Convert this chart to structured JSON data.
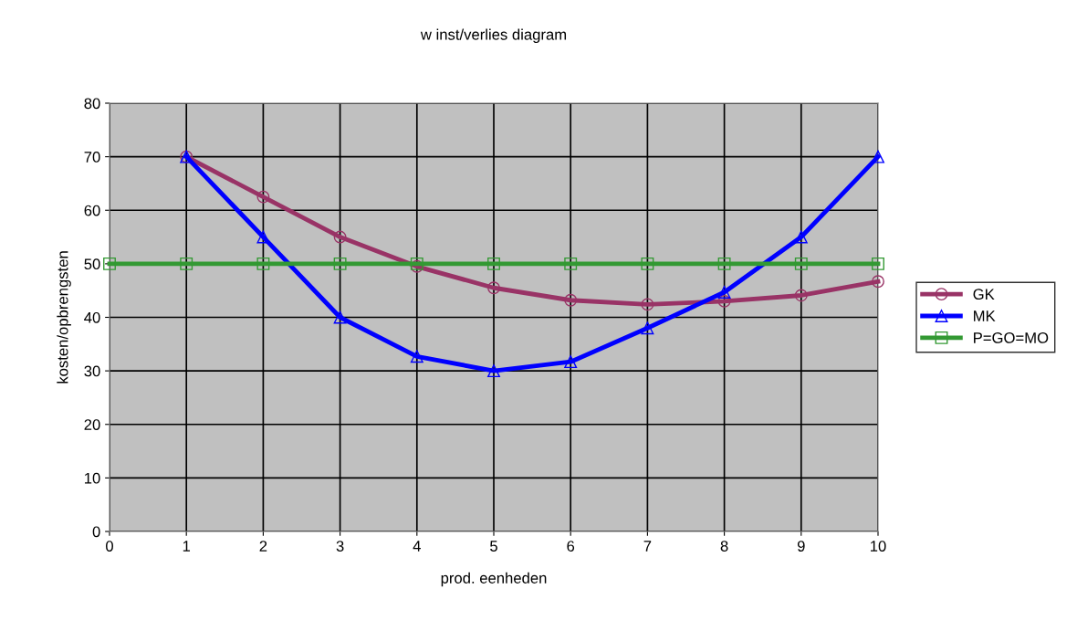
{
  "chart_data": {
    "type": "line",
    "title": "w inst/verlies diagram",
    "xlabel": "prod. eenheden",
    "ylabel": "kosten/opbrengsten",
    "x": [
      1,
      2,
      3,
      4,
      5,
      6,
      7,
      8,
      9,
      10
    ],
    "series": [
      {
        "name": "GK",
        "color": "#993366",
        "marker": "circle",
        "values": [
          70,
          62.5,
          55,
          49.5,
          45.5,
          43.2,
          42.4,
          43,
          44.1,
          46.7
        ]
      },
      {
        "name": "MK",
        "color": "#0000ff",
        "marker": "triangle",
        "values": [
          70,
          55,
          40,
          32.7,
          30,
          31.7,
          38,
          44.7,
          55,
          70
        ]
      },
      {
        "name": "P=GO=MO",
        "color": "#339933",
        "marker": "square",
        "x": [
          0,
          1,
          2,
          3,
          4,
          5,
          6,
          7,
          8,
          9,
          10
        ],
        "values": [
          50,
          50,
          50,
          50,
          50,
          50,
          50,
          50,
          50,
          50,
          50
        ]
      }
    ],
    "xlim": [
      0,
      10
    ],
    "xticks": [
      0,
      1,
      2,
      3,
      4,
      5,
      6,
      7,
      8,
      9,
      10
    ],
    "ylim": [
      0,
      80
    ],
    "yticks": [
      0,
      10,
      20,
      30,
      40,
      50,
      60,
      70,
      80
    ],
    "grid": true,
    "legend": "right"
  }
}
